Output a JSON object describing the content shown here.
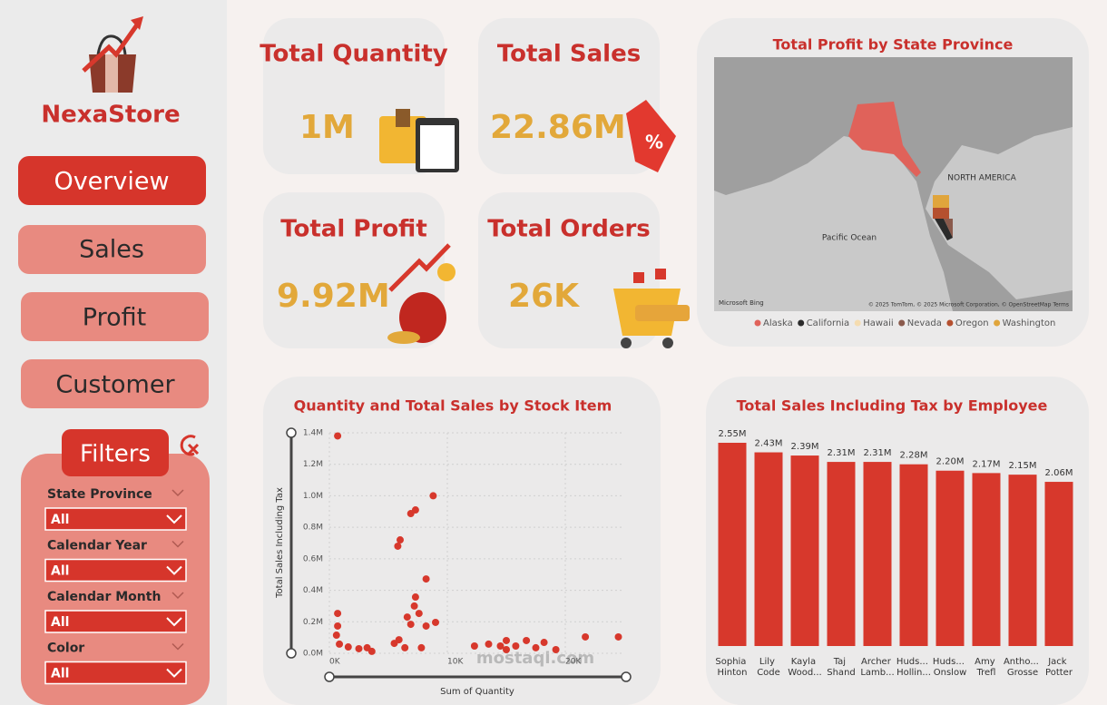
{
  "sidebar": {
    "brand": "NexaStore",
    "nav": [
      "Overview",
      "Sales",
      "Profit",
      "Customer"
    ],
    "filters_title": "Filters",
    "filters": [
      {
        "label": "State Province",
        "value": "All"
      },
      {
        "label": "Calendar Year",
        "value": "All"
      },
      {
        "label": "Calendar Month",
        "value": "All"
      },
      {
        "label": "Color",
        "value": "All"
      }
    ]
  },
  "kpis": [
    {
      "title": "Total Quantity",
      "value": "1M"
    },
    {
      "title": "Total Sales",
      "value": "22.86M"
    },
    {
      "title": "Total Profit",
      "value": "9.92M"
    },
    {
      "title": "Total Orders",
      "value": "26K"
    }
  ],
  "map": {
    "title": "Total Profit by State Province",
    "labels": [
      "NORTH AMERICA",
      "Pacific Ocean"
    ],
    "brand": "Microsoft Bing",
    "attribution": "© 2025 TomTom, © 2025 Microsoft Corporation, © OpenStreetMap Terms",
    "legend": [
      {
        "name": "Alaska",
        "color": "#e0625a"
      },
      {
        "name": "California",
        "color": "#2b2b2b"
      },
      {
        "name": "Hawaii",
        "color": "#f5dcb0"
      },
      {
        "name": "Nevada",
        "color": "#8a5a4c"
      },
      {
        "name": "Oregon",
        "color": "#b5502f"
      },
      {
        "name": "Washington",
        "color": "#e0a53c"
      }
    ]
  },
  "watermark": "mostaql.com",
  "chart_data": [
    {
      "type": "scatter",
      "title": "Quantity and Total Sales by Stock Item",
      "x_label": "Sum of Quantity",
      "y_label": "Total Sales Including Tax",
      "color": "#d7382c",
      "xlim": [
        0,
        25000
      ],
      "ylim": [
        0,
        1400000
      ],
      "xticks": [
        {
          "value": 0,
          "label": "0K"
        },
        {
          "value": 10000,
          "label": "10K"
        },
        {
          "value": 20000,
          "label": "20K"
        }
      ],
      "yticks": [
        {
          "value": 0,
          "label": "0.0M"
        },
        {
          "value": 200000,
          "label": "0.2M"
        },
        {
          "value": 400000,
          "label": "0.4M"
        },
        {
          "value": 600000,
          "label": "0.6M"
        },
        {
          "value": 800000,
          "label": "0.8M"
        },
        {
          "value": 1000000,
          "label": "1.0M"
        },
        {
          "value": 1200000,
          "label": "1.2M"
        },
        {
          "value": 1400000,
          "label": "1.4M"
        }
      ],
      "grid": true,
      "x": [
        700,
        8800,
        7300,
        6900,
        6000,
        5800,
        8200,
        7300,
        7200,
        7600,
        6600,
        6900,
        9000,
        8200,
        5900,
        6400,
        7800,
        700,
        700,
        600,
        850,
        1600,
        2500,
        3200,
        3600,
        5500,
        12300,
        13500,
        14500,
        15000,
        15800,
        16700,
        17500,
        18200,
        19200,
        21700,
        24500,
        15000
      ],
      "values": [
        1380000,
        1000000,
        910000,
        887000,
        720000,
        680000,
        472000,
        357000,
        300000,
        253000,
        230000,
        184000,
        196000,
        173000,
        86000,
        35000,
        35000,
        253000,
        173000,
        115000,
        58000,
        40000,
        29000,
        35000,
        12000,
        63000,
        46000,
        58000,
        46000,
        81000,
        46000,
        81000,
        35000,
        69000,
        23000,
        104000,
        104000,
        23000
      ]
    },
    {
      "type": "bar",
      "title": "Total Sales Including Tax by Employee",
      "color": "#d7382c",
      "categories": [
        "Sophia Hinton",
        "Lily Code",
        "Kayla Wood...",
        "Taj Shand",
        "Archer Lamb...",
        "Huds... Hollin...",
        "Huds... Onslow",
        "Amy Trefl",
        "Antho... Grosse",
        "Jack Potter"
      ],
      "values": [
        2550000,
        2430000,
        2390000,
        2310000,
        2310000,
        2280000,
        2200000,
        2170000,
        2150000,
        2060000
      ],
      "value_labels": [
        "2.55M",
        "2.43M",
        "2.39M",
        "2.31M",
        "2.31M",
        "2.28M",
        "2.20M",
        "2.17M",
        "2.15M",
        "2.06M"
      ]
    }
  ]
}
